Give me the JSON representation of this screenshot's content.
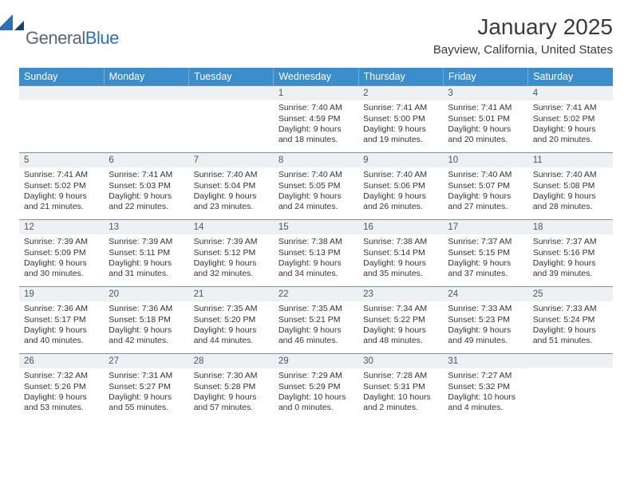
{
  "brand": {
    "part1": "General",
    "part2": "Blue"
  },
  "title": "January 2025",
  "location": "Bayview, California, United States",
  "dayHeaders": [
    "Sunday",
    "Monday",
    "Tuesday",
    "Wednesday",
    "Thursday",
    "Friday",
    "Saturday"
  ],
  "colors": {
    "header_bg": "#3c8dcc",
    "header_text": "#ffffff",
    "daynum_bg": "#eef1f4",
    "daynum_border": "#7792a8",
    "logo_gray": "#5b6770",
    "logo_blue": "#2f6fb3"
  },
  "weeks": [
    [
      {
        "n": "",
        "sunrise": "",
        "sunset": "",
        "daylight": ""
      },
      {
        "n": "",
        "sunrise": "",
        "sunset": "",
        "daylight": ""
      },
      {
        "n": "",
        "sunrise": "",
        "sunset": "",
        "daylight": ""
      },
      {
        "n": "1",
        "sunrise": "Sunrise: 7:40 AM",
        "sunset": "Sunset: 4:59 PM",
        "daylight": "Daylight: 9 hours and 18 minutes."
      },
      {
        "n": "2",
        "sunrise": "Sunrise: 7:41 AM",
        "sunset": "Sunset: 5:00 PM",
        "daylight": "Daylight: 9 hours and 19 minutes."
      },
      {
        "n": "3",
        "sunrise": "Sunrise: 7:41 AM",
        "sunset": "Sunset: 5:01 PM",
        "daylight": "Daylight: 9 hours and 20 minutes."
      },
      {
        "n": "4",
        "sunrise": "Sunrise: 7:41 AM",
        "sunset": "Sunset: 5:02 PM",
        "daylight": "Daylight: 9 hours and 20 minutes."
      }
    ],
    [
      {
        "n": "5",
        "sunrise": "Sunrise: 7:41 AM",
        "sunset": "Sunset: 5:02 PM",
        "daylight": "Daylight: 9 hours and 21 minutes."
      },
      {
        "n": "6",
        "sunrise": "Sunrise: 7:41 AM",
        "sunset": "Sunset: 5:03 PM",
        "daylight": "Daylight: 9 hours and 22 minutes."
      },
      {
        "n": "7",
        "sunrise": "Sunrise: 7:40 AM",
        "sunset": "Sunset: 5:04 PM",
        "daylight": "Daylight: 9 hours and 23 minutes."
      },
      {
        "n": "8",
        "sunrise": "Sunrise: 7:40 AM",
        "sunset": "Sunset: 5:05 PM",
        "daylight": "Daylight: 9 hours and 24 minutes."
      },
      {
        "n": "9",
        "sunrise": "Sunrise: 7:40 AM",
        "sunset": "Sunset: 5:06 PM",
        "daylight": "Daylight: 9 hours and 26 minutes."
      },
      {
        "n": "10",
        "sunrise": "Sunrise: 7:40 AM",
        "sunset": "Sunset: 5:07 PM",
        "daylight": "Daylight: 9 hours and 27 minutes."
      },
      {
        "n": "11",
        "sunrise": "Sunrise: 7:40 AM",
        "sunset": "Sunset: 5:08 PM",
        "daylight": "Daylight: 9 hours and 28 minutes."
      }
    ],
    [
      {
        "n": "12",
        "sunrise": "Sunrise: 7:39 AM",
        "sunset": "Sunset: 5:09 PM",
        "daylight": "Daylight: 9 hours and 30 minutes."
      },
      {
        "n": "13",
        "sunrise": "Sunrise: 7:39 AM",
        "sunset": "Sunset: 5:11 PM",
        "daylight": "Daylight: 9 hours and 31 minutes."
      },
      {
        "n": "14",
        "sunrise": "Sunrise: 7:39 AM",
        "sunset": "Sunset: 5:12 PM",
        "daylight": "Daylight: 9 hours and 32 minutes."
      },
      {
        "n": "15",
        "sunrise": "Sunrise: 7:38 AM",
        "sunset": "Sunset: 5:13 PM",
        "daylight": "Daylight: 9 hours and 34 minutes."
      },
      {
        "n": "16",
        "sunrise": "Sunrise: 7:38 AM",
        "sunset": "Sunset: 5:14 PM",
        "daylight": "Daylight: 9 hours and 35 minutes."
      },
      {
        "n": "17",
        "sunrise": "Sunrise: 7:37 AM",
        "sunset": "Sunset: 5:15 PM",
        "daylight": "Daylight: 9 hours and 37 minutes."
      },
      {
        "n": "18",
        "sunrise": "Sunrise: 7:37 AM",
        "sunset": "Sunset: 5:16 PM",
        "daylight": "Daylight: 9 hours and 39 minutes."
      }
    ],
    [
      {
        "n": "19",
        "sunrise": "Sunrise: 7:36 AM",
        "sunset": "Sunset: 5:17 PM",
        "daylight": "Daylight: 9 hours and 40 minutes."
      },
      {
        "n": "20",
        "sunrise": "Sunrise: 7:36 AM",
        "sunset": "Sunset: 5:18 PM",
        "daylight": "Daylight: 9 hours and 42 minutes."
      },
      {
        "n": "21",
        "sunrise": "Sunrise: 7:35 AM",
        "sunset": "Sunset: 5:20 PM",
        "daylight": "Daylight: 9 hours and 44 minutes."
      },
      {
        "n": "22",
        "sunrise": "Sunrise: 7:35 AM",
        "sunset": "Sunset: 5:21 PM",
        "daylight": "Daylight: 9 hours and 46 minutes."
      },
      {
        "n": "23",
        "sunrise": "Sunrise: 7:34 AM",
        "sunset": "Sunset: 5:22 PM",
        "daylight": "Daylight: 9 hours and 48 minutes."
      },
      {
        "n": "24",
        "sunrise": "Sunrise: 7:33 AM",
        "sunset": "Sunset: 5:23 PM",
        "daylight": "Daylight: 9 hours and 49 minutes."
      },
      {
        "n": "25",
        "sunrise": "Sunrise: 7:33 AM",
        "sunset": "Sunset: 5:24 PM",
        "daylight": "Daylight: 9 hours and 51 minutes."
      }
    ],
    [
      {
        "n": "26",
        "sunrise": "Sunrise: 7:32 AM",
        "sunset": "Sunset: 5:26 PM",
        "daylight": "Daylight: 9 hours and 53 minutes."
      },
      {
        "n": "27",
        "sunrise": "Sunrise: 7:31 AM",
        "sunset": "Sunset: 5:27 PM",
        "daylight": "Daylight: 9 hours and 55 minutes."
      },
      {
        "n": "28",
        "sunrise": "Sunrise: 7:30 AM",
        "sunset": "Sunset: 5:28 PM",
        "daylight": "Daylight: 9 hours and 57 minutes."
      },
      {
        "n": "29",
        "sunrise": "Sunrise: 7:29 AM",
        "sunset": "Sunset: 5:29 PM",
        "daylight": "Daylight: 10 hours and 0 minutes."
      },
      {
        "n": "30",
        "sunrise": "Sunrise: 7:28 AM",
        "sunset": "Sunset: 5:31 PM",
        "daylight": "Daylight: 10 hours and 2 minutes."
      },
      {
        "n": "31",
        "sunrise": "Sunrise: 7:27 AM",
        "sunset": "Sunset: 5:32 PM",
        "daylight": "Daylight: 10 hours and 4 minutes."
      },
      {
        "n": "",
        "sunrise": "",
        "sunset": "",
        "daylight": ""
      }
    ]
  ]
}
